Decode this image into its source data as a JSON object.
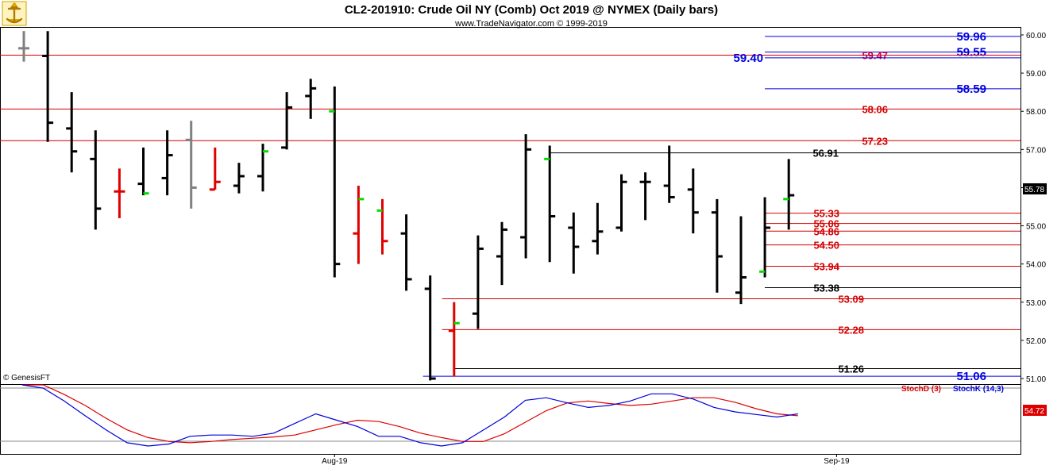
{
  "header": {
    "title": "CL2-201910:  Crude Oil NY (Comb) Oct 2019 @ NYMEX  (Daily bars)",
    "subtitle": "www.TradeNavigator.com © 1999-2019"
  },
  "copyright_label": "© GenesisFT",
  "colors": {
    "up_bar": "#000000",
    "down_bar": "#e00000",
    "neutral_bar": "#808080",
    "close_up_tick": "#00dd00",
    "red_level": "#d40000",
    "blue_level": "#0000e0",
    "black_level": "#000000",
    "crimson_level": "#cc0044",
    "stoch_d": "#dd0000",
    "stoch_k": "#0000dd"
  },
  "chart_data": [
    {
      "type": "ohlc",
      "title": "CL2-201910:  Crude Oil NY (Comb) Oct 2019 @ NYMEX  (Daily bars)",
      "ylim": [
        50.9,
        60.15
      ],
      "yticks": [
        "60.00",
        "59.00",
        "58.00",
        "57.00",
        "56.00",
        "55.00",
        "54.00",
        "53.00",
        "52.00",
        "51.00"
      ],
      "xticks": [
        {
          "label": "Aug-19",
          "index": 13
        },
        {
          "label": "Sep-19",
          "index": 34
        }
      ],
      "last_price_label": "55.78",
      "bars": [
        {
          "o": 59.65,
          "h": 60.1,
          "l": 59.3,
          "c": 59.65,
          "color": "neutral"
        },
        {
          "o": 59.45,
          "h": 60.1,
          "l": 57.2,
          "c": 57.7,
          "color": "up"
        },
        {
          "o": 57.55,
          "h": 58.5,
          "l": 56.4,
          "c": 56.95,
          "color": "up"
        },
        {
          "o": 56.75,
          "h": 57.5,
          "l": 54.9,
          "c": 55.45,
          "color": "up"
        },
        {
          "o": 55.9,
          "h": 56.5,
          "l": 55.2,
          "c": 55.9,
          "color": "down"
        },
        {
          "o": 56.1,
          "h": 57.05,
          "l": 55.8,
          "c": 55.85,
          "color": "up",
          "close_tick": "green"
        },
        {
          "o": 56.25,
          "h": 57.5,
          "l": 55.8,
          "c": 56.85,
          "color": "up"
        },
        {
          "o": 57.25,
          "h": 57.75,
          "l": 55.45,
          "c": 56.0,
          "color": "neutral"
        },
        {
          "o": 55.95,
          "h": 57.05,
          "l": 55.95,
          "c": 56.15,
          "color": "down"
        },
        {
          "o": 56.05,
          "h": 56.65,
          "l": 55.85,
          "c": 56.3,
          "color": "up"
        },
        {
          "o": 56.3,
          "h": 57.15,
          "l": 55.9,
          "c": 56.95,
          "color": "up",
          "close_tick": "green"
        },
        {
          "o": 57.05,
          "h": 58.5,
          "l": 57.0,
          "c": 58.1,
          "color": "up"
        },
        {
          "o": 58.4,
          "h": 58.85,
          "l": 57.8,
          "c": 58.6,
          "color": "up"
        },
        {
          "o": 58.0,
          "h": 58.65,
          "l": 53.65,
          "c": 54.0,
          "color": "up",
          "open_tick": "green"
        },
        {
          "o": 54.8,
          "h": 56.05,
          "l": 54.0,
          "c": 55.7,
          "color": "down",
          "close_tick": "green"
        },
        {
          "o": 55.4,
          "h": 55.7,
          "l": 54.25,
          "c": 54.6,
          "color": "down",
          "open_tick": "green"
        },
        {
          "o": 54.8,
          "h": 55.3,
          "l": 53.3,
          "c": 53.6,
          "color": "up"
        },
        {
          "o": 53.35,
          "h": 53.7,
          "l": 50.95,
          "c": 51.0,
          "color": "up"
        },
        {
          "o": 52.25,
          "h": 53.0,
          "l": 51.05,
          "c": 52.45,
          "color": "down",
          "close_tick": "green"
        },
        {
          "o": 52.7,
          "h": 54.75,
          "l": 52.3,
          "c": 54.4,
          "color": "up"
        },
        {
          "o": 54.2,
          "h": 55.1,
          "l": 53.45,
          "c": 54.9,
          "color": "up"
        },
        {
          "o": 54.7,
          "h": 57.4,
          "l": 54.15,
          "c": 57.0,
          "color": "up"
        },
        {
          "o": 56.75,
          "h": 57.1,
          "l": 54.05,
          "c": 55.25,
          "color": "up",
          "open_tick": "green"
        },
        {
          "o": 54.95,
          "h": 55.35,
          "l": 53.75,
          "c": 54.45,
          "color": "up"
        },
        {
          "o": 54.6,
          "h": 55.6,
          "l": 54.25,
          "c": 54.85,
          "color": "up"
        },
        {
          "o": 54.95,
          "h": 56.35,
          "l": 54.85,
          "c": 56.15,
          "color": "up"
        },
        {
          "o": 56.15,
          "h": 56.4,
          "l": 55.15,
          "c": 56.15,
          "color": "up"
        },
        {
          "o": 56.05,
          "h": 57.1,
          "l": 55.6,
          "c": 55.75,
          "color": "up"
        },
        {
          "o": 55.95,
          "h": 56.5,
          "l": 54.8,
          "c": 55.35,
          "color": "up"
        },
        {
          "o": 55.35,
          "h": 55.7,
          "l": 53.25,
          "c": 54.2,
          "color": "up"
        },
        {
          "o": 53.25,
          "h": 55.25,
          "l": 52.95,
          "c": 53.65,
          "color": "up"
        },
        {
          "o": 53.8,
          "h": 55.75,
          "l": 53.65,
          "c": 54.95,
          "color": "up",
          "open_tick": "green"
        },
        {
          "o": 55.7,
          "h": 56.75,
          "l": 54.9,
          "c": 55.8,
          "color": "up",
          "open_tick": "green"
        }
      ],
      "levels": [
        {
          "value": 59.96,
          "label": "59.96",
          "style": "blue",
          "x_start": 31
        },
        {
          "value": 59.55,
          "label": "59.55",
          "style": "blue",
          "x_start": 31
        },
        {
          "value": 59.47,
          "label": "59.47",
          "style": "red",
          "x_start": -1
        },
        {
          "value": 59.4,
          "label": "59.40",
          "style": "blue",
          "x_start": 31,
          "label_at_start": true
        },
        {
          "value": 58.59,
          "label": "58.59",
          "style": "blue",
          "x_start": 31
        },
        {
          "value": 58.06,
          "label": "58.06",
          "style": "red",
          "x_start": -1
        },
        {
          "value": 57.23,
          "label": "57.23",
          "style": "red",
          "x_start": -1
        },
        {
          "value": 56.91,
          "label": "56.91",
          "style": "black",
          "x_start": 22
        },
        {
          "value": 55.33,
          "label": "55.33",
          "style": "red",
          "x_start": 31
        },
        {
          "value": 55.06,
          "label": "55.06",
          "style": "red",
          "x_start": 31
        },
        {
          "value": 54.86,
          "label": "54.86",
          "style": "red",
          "x_start": 31
        },
        {
          "value": 54.5,
          "label": "54.50",
          "style": "red",
          "x_start": 31
        },
        {
          "value": 53.94,
          "label": "53.94",
          "style": "red",
          "x_start": 31
        },
        {
          "value": 53.38,
          "label": "53.38",
          "style": "black",
          "x_start": 31
        },
        {
          "value": 53.09,
          "label": "53.09",
          "style": "red",
          "x_start": 17.5
        },
        {
          "value": 52.28,
          "label": "52.28",
          "style": "red",
          "x_start": 17.5
        },
        {
          "value": 51.26,
          "label": "51.26",
          "style": "black",
          "x_start": 18
        },
        {
          "value": 51.06,
          "label": "51.06",
          "style": "blue",
          "x_start": 16.7
        }
      ]
    },
    {
      "type": "line",
      "ylim": [
        0,
        100
      ],
      "series": [
        {
          "name": "StochD (3)",
          "color": "#dd0000",
          "values": [
            100,
            100,
            85,
            68,
            48,
            30,
            18,
            12,
            10,
            12,
            15,
            17,
            19,
            22,
            30,
            38,
            45,
            43,
            35,
            25,
            18,
            12,
            12,
            24,
            42,
            60,
            72,
            75,
            71,
            68,
            70,
            75,
            80,
            80,
            73,
            63,
            55,
            52
          ]
        },
        {
          "name": "StochK (14,3)",
          "color": "#0000dd",
          "values": [
            100,
            95,
            75,
            52,
            30,
            10,
            5,
            8,
            20,
            22,
            22,
            20,
            25,
            40,
            55,
            45,
            35,
            20,
            20,
            10,
            5,
            10,
            30,
            50,
            76,
            80,
            72,
            65,
            68,
            75,
            86,
            86,
            78,
            65,
            58,
            54,
            50,
            55
          ]
        }
      ],
      "last_value_label": "54.72"
    }
  ]
}
